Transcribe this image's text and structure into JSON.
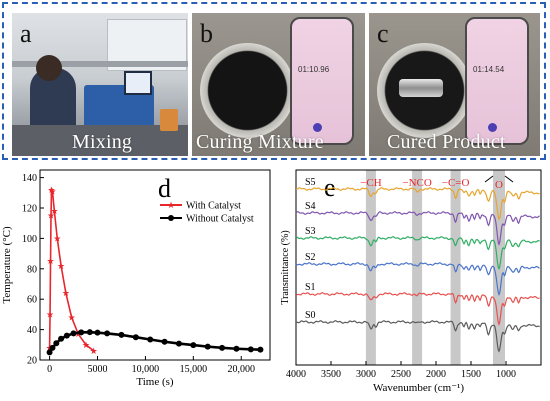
{
  "photos": [
    {
      "label": "a",
      "caption": "Mixing"
    },
    {
      "label": "b",
      "caption": "Curing Mixture",
      "timer": "01:10.96"
    },
    {
      "label": "c",
      "caption": "Cured Product",
      "timer": "01:14.54"
    }
  ],
  "colors": {
    "frame": "#2b5fb4",
    "with_catalyst": "#e8262b",
    "without_catalyst": "#000000",
    "annotation": "#e8262b",
    "band": "#c8c8c8",
    "S0": "#5a5a5a",
    "S1": "#e6514f",
    "S2": "#4a74c9",
    "S3": "#2fae63",
    "S4": "#7f56b0",
    "S5": "#e6a52e"
  },
  "chart_data": [
    {
      "panel_label": "d",
      "type": "line",
      "xlabel": "Time (s)",
      "ylabel": "Temperature (°C)",
      "xlim": [
        -1000,
        23000
      ],
      "ylim": [
        20,
        145
      ],
      "x_ticks": [
        0,
        5000,
        10000,
        15000,
        20000
      ],
      "x_tick_labels": [
        "0",
        "5000",
        "10,000",
        "15,000",
        "20,000"
      ],
      "y_ticks": [
        20,
        40,
        60,
        80,
        100,
        120,
        140
      ],
      "y_tick_labels": [
        "20",
        "40",
        "60",
        "80",
        "100",
        "120",
        "140"
      ],
      "legend_position": "top-right",
      "series": [
        {
          "name": "With Catalyst",
          "marker": "star",
          "x": [
            0,
            50,
            100,
            150,
            200,
            300,
            500,
            800,
            1200,
            1700,
            2300,
            3000,
            3800,
            4600
          ],
          "y": [
            28,
            50,
            85,
            115,
            132,
            131,
            118,
            100,
            82,
            64,
            48,
            37,
            30,
            26
          ]
        },
        {
          "name": "Without Catalyst",
          "marker": "circle",
          "x": [
            0,
            300,
            700,
            1200,
            1800,
            2500,
            3300,
            4200,
            5000,
            6000,
            7500,
            9000,
            10500,
            12000,
            13500,
            15000,
            16500,
            18000,
            19500,
            21000,
            22000
          ],
          "y": [
            25,
            28,
            31,
            34,
            36,
            37.5,
            38.2,
            38.3,
            38,
            37.5,
            36.5,
            35,
            33.5,
            32,
            30.8,
            29.8,
            28.8,
            28,
            27.4,
            27,
            26.8
          ]
        }
      ]
    },
    {
      "panel_label": "e",
      "type": "line",
      "xlabel": "Wavenumber (cm⁻¹)",
      "ylabel": "Transmittance (%)",
      "xlim": [
        4000,
        500
      ],
      "x_reversed": true,
      "x_ticks": [
        4000,
        3500,
        3000,
        2500,
        2000,
        1500,
        1000
      ],
      "x_tick_labels": [
        "4000",
        "3500",
        "3000",
        "2500",
        "2000",
        "1500",
        "1000"
      ],
      "series_names": [
        "S0",
        "S1",
        "S2",
        "S3",
        "S4",
        "S5"
      ],
      "peaks": [
        {
          "label": "−CH",
          "wavenumber": 2930
        },
        {
          "label": "−NCO",
          "wavenumber": 2270
        },
        {
          "label": "−C=O",
          "wavenumber": 1720
        },
        {
          "label": "O",
          "wavenumber": 1100
        }
      ]
    }
  ]
}
